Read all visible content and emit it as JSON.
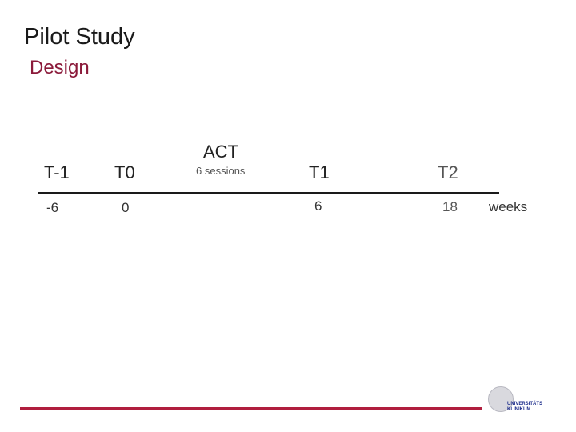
{
  "slide": {
    "title": "Pilot Study",
    "subtitle": "Design"
  },
  "timeline": {
    "phases": [
      {
        "id": "t-minus-1",
        "label": "T-1",
        "week": "-6"
      },
      {
        "id": "t0",
        "label": "T0",
        "week": "0"
      },
      {
        "id": "act",
        "label": "ACT",
        "detail": "6 sessions"
      },
      {
        "id": "t1",
        "label": "T1",
        "week": "6"
      },
      {
        "id": "t2",
        "label": "T2",
        "week": "18"
      }
    ],
    "unit_label": "weeks"
  },
  "logo": {
    "text": "UNIVERSITÄTS KLINIKUM"
  },
  "colors": {
    "accent": "#8b1a3a",
    "footer_line": "#b01e3e",
    "timeline_line": "#1a1a1a"
  }
}
